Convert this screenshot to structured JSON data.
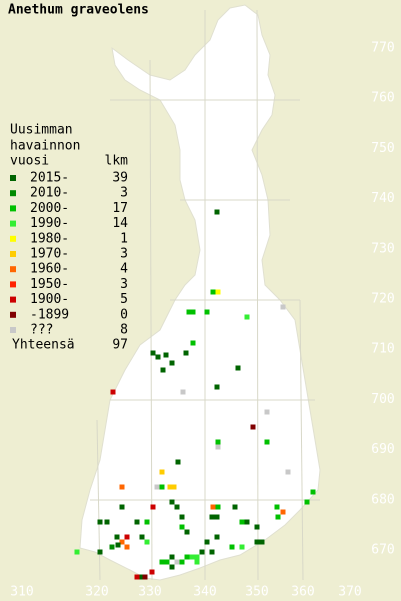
{
  "title": "Anethum graveolens",
  "legend": {
    "heading": [
      "Uusimman",
      "havainnon",
      "vuosi"
    ],
    "count_heading": "lkm",
    "rows": [
      {
        "label": "2015-",
        "count": 39,
        "color": "#006400"
      },
      {
        "label": "2010-",
        "count": 3,
        "color": "#008a00"
      },
      {
        "label": "2000-",
        "count": 17,
        "color": "#00c000"
      },
      {
        "label": "1990-",
        "count": 14,
        "color": "#33ee33"
      },
      {
        "label": "1980-",
        "count": 1,
        "color": "#ffff00"
      },
      {
        "label": "1970-",
        "count": 3,
        "color": "#ffcc00"
      },
      {
        "label": "1960-",
        "count": 4,
        "color": "#ff6600"
      },
      {
        "label": "1950-",
        "count": 3,
        "color": "#ff2200"
      },
      {
        "label": "1900-",
        "count": 5,
        "color": "#cc0000"
      },
      {
        "label": "-1899",
        "count": 0,
        "color": "#800000"
      },
      {
        "label": "???",
        "count": 8,
        "color": "#c8c8c8"
      }
    ],
    "total_label": "Yhteensä",
    "total": 97
  },
  "x_axis_labels": [
    310,
    320,
    330,
    340,
    350,
    360,
    370
  ],
  "y_axis_labels": [
    770,
    760,
    750,
    740,
    730,
    720,
    710,
    700,
    690,
    680,
    670
  ]
}
